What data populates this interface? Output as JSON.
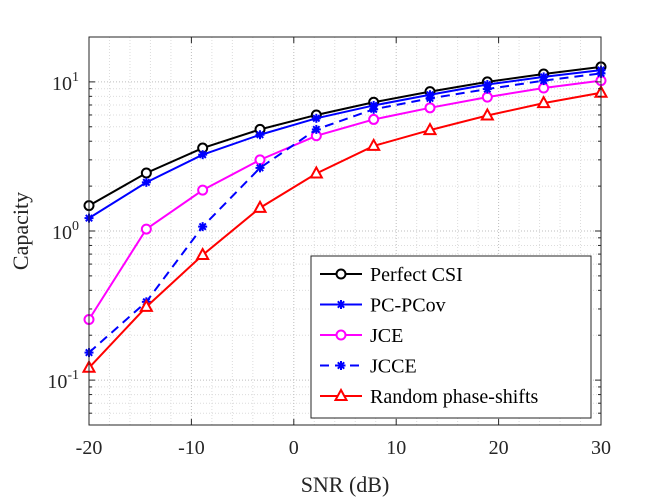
{
  "chart_data": {
    "type": "line",
    "title": "",
    "xlabel": "SNR (dB)",
    "ylabel": "Capacity",
    "xlim": [
      -20,
      30
    ],
    "ylim": [
      0.05,
      20
    ],
    "yscale": "log",
    "grid": true,
    "minor_grid": true,
    "legend_position": "bottom-right",
    "x_ticks": [
      -20,
      -10,
      0,
      10,
      20,
      30
    ],
    "x_tick_labels": [
      "-20",
      "-10",
      "0",
      "10",
      "20",
      "30"
    ],
    "y_ticks": [
      {
        "value": 0.1,
        "base": "10",
        "exponent": "-1"
      },
      {
        "value": 1,
        "base": "10",
        "exponent": "0"
      },
      {
        "value": 10,
        "base": "10",
        "exponent": "1"
      }
    ],
    "x": [
      -20,
      -14.4,
      -8.9,
      -3.3,
      2.2,
      7.8,
      13.3,
      18.9,
      24.4,
      30
    ],
    "series": [
      {
        "name": "Perfect CSI",
        "color": "#000000",
        "marker": "circle",
        "dash": "solid",
        "values": [
          1.48,
          2.45,
          3.6,
          4.8,
          6.0,
          7.3,
          8.6,
          10.0,
          11.3,
          12.6
        ]
      },
      {
        "name": "PC-PCov",
        "color": "#0000ff",
        "marker": "asterisk",
        "dash": "solid",
        "values": [
          1.22,
          2.12,
          3.25,
          4.42,
          5.7,
          6.95,
          8.2,
          9.6,
          10.8,
          12.0
        ]
      },
      {
        "name": "JCE",
        "color": "#ff00ff",
        "marker": "circle",
        "dash": "solid",
        "values": [
          0.255,
          1.03,
          1.88,
          3.0,
          4.35,
          5.6,
          6.7,
          7.9,
          9.1,
          10.2
        ]
      },
      {
        "name": "JCCE",
        "color": "#0000ff",
        "marker": "asterisk",
        "dash": "dashed",
        "values": [
          0.153,
          0.335,
          1.07,
          2.65,
          4.8,
          6.55,
          7.75,
          8.95,
          10.2,
          11.4
        ]
      },
      {
        "name": "Random phase-shifts",
        "color": "#ff0000",
        "marker": "triangle",
        "dash": "solid",
        "values": [
          0.121,
          0.31,
          0.69,
          1.43,
          2.43,
          3.72,
          4.75,
          5.95,
          7.2,
          8.45
        ]
      }
    ]
  }
}
